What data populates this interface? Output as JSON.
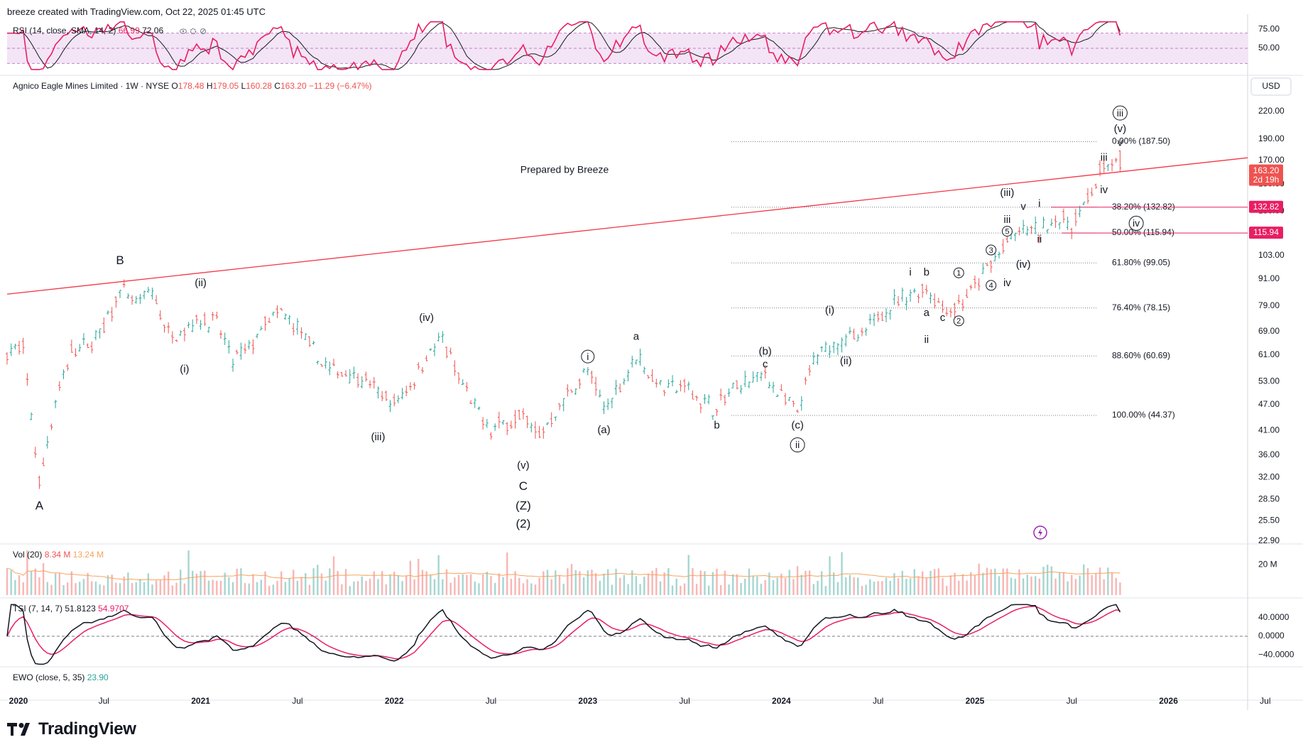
{
  "header": {
    "created": "breeze created with TradingView.com, Oct 22, 2025 01:45 UTC"
  },
  "brand": {
    "logo_text": "TradingView",
    "logo_icon": "tradingview-logo-icon"
  },
  "currency": "USD",
  "main_legend": {
    "symbol": "Agnico Eagle Mines Limited · 1W · NYSE",
    "o_label": "O",
    "o": "178.48",
    "h_label": "H",
    "h": "179.05",
    "l_label": "L",
    "l": "160.28",
    "c_label": "C",
    "c": "163.20",
    "change": "−11.29 (−6.47%)"
  },
  "watermark": "Prepared by Breeze",
  "rsi": {
    "label": "RSI (14, close, SMA, 14, 2)",
    "value": "66.99",
    "sma": "72.06",
    "icons": [
      "eye-icon",
      "settings-icon",
      "delete-icon"
    ]
  },
  "vol": {
    "label": "Vol (20)",
    "value": "8.34 M",
    "ma": "13.24 M"
  },
  "tsi": {
    "label": "TSI (7, 14, 7)",
    "value": "51.8123",
    "signal": "54.9707"
  },
  "ewo": {
    "label": "EWO (close, 5, 35)",
    "value": "23.90"
  },
  "price_badges": {
    "last": "163.20",
    "countdown": "2d 19h",
    "fib382": "132.82",
    "fib50": "115.94"
  },
  "colors": {
    "up": "#26a69a",
    "down": "#ef5350",
    "rsi_line": "#e91e63",
    "rsi_band": "#f3e5f5",
    "trendline": "#f23645",
    "fib_badge": "#e91e63",
    "tsi_main": "#131722",
    "tsi_signal": "#e91e63",
    "ewo_value": "#26a69a",
    "vol_ma": "#f7a35c"
  },
  "chart_data": {
    "type": "candlestick",
    "title": "Agnico Eagle Mines Limited · 1W · NYSE",
    "scale": "log",
    "ylim": [
      22.9,
      260
    ],
    "y_ticks": [
      "220.00",
      "190.00",
      "170.00",
      "150.00",
      "130.00",
      "103.00",
      "91.00",
      "79.00",
      "69.00",
      "61.00",
      "53.00",
      "47.00",
      "41.00",
      "36.00",
      "32.00",
      "28.50",
      "25.50",
      "22.90"
    ],
    "x_ticks": [
      "2020",
      "Jul",
      "2021",
      "Jul",
      "2022",
      "Jul",
      "2023",
      "Jul",
      "2024",
      "Jul",
      "2025",
      "Jul",
      "2026",
      "Jul"
    ],
    "x_range": [
      "2020-01",
      "2026-10"
    ],
    "fib_levels": [
      {
        "label": "0.00% (187.50)",
        "value": 187.5
      },
      {
        "label": "38.20% (132.82)",
        "value": 132.82
      },
      {
        "label": "50.00% (115.94)",
        "value": 115.94
      },
      {
        "label": "61.80% (99.05)",
        "value": 99.05
      },
      {
        "label": "76.40% (78.15)",
        "value": 78.15
      },
      {
        "label": "88.60% (60.69)",
        "value": 60.69
      },
      {
        "label": "100.00% (44.37)",
        "value": 44.37
      }
    ],
    "trendline": [
      {
        "t": "2020-01",
        "v": 84
      },
      {
        "t": "2025-12",
        "v": 163
      }
    ],
    "price_path": [
      [
        "2020-01",
        62
      ],
      [
        "2020-02",
        63
      ],
      [
        "2020-03",
        31
      ],
      [
        "2020-04",
        48
      ],
      [
        "2020-05",
        62
      ],
      [
        "2020-06",
        64
      ],
      [
        "2020-07",
        70
      ],
      [
        "2020-08",
        86
      ],
      [
        "2020-09",
        80
      ],
      [
        "2020-10",
        85
      ],
      [
        "2020-11",
        68
      ],
      [
        "2020-12",
        70
      ],
      [
        "2021-01",
        74
      ],
      [
        "2021-02",
        72
      ],
      [
        "2021-03",
        59
      ],
      [
        "2021-04",
        63
      ],
      [
        "2021-05",
        72
      ],
      [
        "2021-06",
        76
      ],
      [
        "2021-07",
        70
      ],
      [
        "2021-08",
        62
      ],
      [
        "2021-09",
        56
      ],
      [
        "2021-10",
        56
      ],
      [
        "2021-11",
        54
      ],
      [
        "2021-12",
        50
      ],
      [
        "2022-01",
        47
      ],
      [
        "2022-02",
        52
      ],
      [
        "2022-03",
        61
      ],
      [
        "2022-04",
        66
      ],
      [
        "2022-05",
        54
      ],
      [
        "2022-06",
        46
      ],
      [
        "2022-07",
        41
      ],
      [
        "2022-08",
        43
      ],
      [
        "2022-09",
        44
      ],
      [
        "2022-10",
        40
      ],
      [
        "2022-11",
        45
      ],
      [
        "2022-12",
        51
      ],
      [
        "2023-01",
        56
      ],
      [
        "2023-02",
        46
      ],
      [
        "2023-03",
        52
      ],
      [
        "2023-04",
        61
      ],
      [
        "2023-05",
        54
      ],
      [
        "2023-06",
        51
      ],
      [
        "2023-07",
        52
      ],
      [
        "2023-08",
        48
      ],
      [
        "2023-09",
        46
      ],
      [
        "2023-10",
        51
      ],
      [
        "2023-11",
        53
      ],
      [
        "2023-12",
        55
      ],
      [
        "2024-01",
        49
      ],
      [
        "2024-02",
        45
      ],
      [
        "2024-03",
        59
      ],
      [
        "2024-04",
        64
      ],
      [
        "2024-05",
        67
      ],
      [
        "2024-06",
        66
      ],
      [
        "2024-07",
        76
      ],
      [
        "2024-08",
        80
      ],
      [
        "2024-09",
        84
      ],
      [
        "2024-10",
        87
      ],
      [
        "2024-11",
        78
      ],
      [
        "2024-12",
        79
      ],
      [
        "2025-01",
        87
      ],
      [
        "2025-02",
        99
      ],
      [
        "2025-03",
        110
      ],
      [
        "2025-04",
        118
      ],
      [
        "2025-05",
        117
      ],
      [
        "2025-06",
        125
      ],
      [
        "2025-07",
        121
      ],
      [
        "2025-08",
        139
      ],
      [
        "2025-09",
        165
      ],
      [
        "2025-10",
        163.2
      ]
    ],
    "wave_labels": [
      {
        "text": "A",
        "t": "2020-03",
        "v": 27.5
      },
      {
        "text": "B",
        "t": "2020-08",
        "v": 100
      },
      {
        "text": "(i)",
        "t": "2020-12",
        "v": 56.5
      },
      {
        "text": "(ii)",
        "t": "2021-01",
        "v": 89
      },
      {
        "text": "(iii)",
        "t": "2021-12",
        "v": 39.5
      },
      {
        "text": "(iv)",
        "t": "2022-03",
        "v": 74
      },
      {
        "text": "(v)",
        "t": "2022-09",
        "v": 34
      },
      {
        "text": "C",
        "t": "2022-09",
        "v": 30.5
      },
      {
        "text": "(Z)",
        "t": "2022-09",
        "v": 27.5
      },
      {
        "text": "(2)",
        "t": "2022-09",
        "v": 25
      },
      {
        "text": "i",
        "t": "2023-01",
        "v": 60.5,
        "circled": true
      },
      {
        "text": "(a)",
        "t": "2023-02",
        "v": 41
      },
      {
        "text": "a",
        "t": "2023-04",
        "v": 67
      },
      {
        "text": "b",
        "t": "2023-09",
        "v": 42
      },
      {
        "text": "(b)",
        "t": "2023-12",
        "v": 62
      },
      {
        "text": "c",
        "t": "2023-12",
        "v": 58
      },
      {
        "text": "(c)",
        "t": "2024-02",
        "v": 42
      },
      {
        "text": "ii",
        "t": "2024-02",
        "v": 38,
        "circled": true
      },
      {
        "text": "(i)",
        "t": "2024-04",
        "v": 77
      },
      {
        "text": "(ii)",
        "t": "2024-05",
        "v": 59
      },
      {
        "text": "i",
        "t": "2024-09",
        "v": 94
      },
      {
        "text": "a",
        "t": "2024-10",
        "v": 76
      },
      {
        "text": "ii",
        "t": "2024-10",
        "v": 66
      },
      {
        "text": "b",
        "t": "2024-10",
        "v": 94
      },
      {
        "text": "c",
        "t": "2024-11",
        "v": 74
      },
      {
        "text": "1",
        "t": "2024-12",
        "v": 94,
        "circled": true
      },
      {
        "text": "2",
        "t": "2024-12",
        "v": 73,
        "circled": true
      },
      {
        "text": "3",
        "t": "2025-02",
        "v": 106,
        "circled": true
      },
      {
        "text": "4",
        "t": "2025-02",
        "v": 88,
        "circled": true
      },
      {
        "text": "5",
        "t": "2025-03",
        "v": 117,
        "circled": true
      },
      {
        "text": "iii",
        "t": "2025-03",
        "v": 124
      },
      {
        "text": "iv",
        "t": "2025-03",
        "v": 89
      },
      {
        "text": "v",
        "t": "2025-04",
        "v": 133
      },
      {
        "text": "(iii)",
        "t": "2025-03",
        "v": 143
      },
      {
        "text": "(iv)",
        "t": "2025-04",
        "v": 98
      },
      {
        "text": "i",
        "t": "2025-05",
        "v": 135
      },
      {
        "text": "ii",
        "t": "2025-05",
        "v": 112
      },
      {
        "text": "iii",
        "t": "2025-09",
        "v": 172
      },
      {
        "text": "iv",
        "t": "2025-09",
        "v": 145
      },
      {
        "text": "v",
        "t": "2025-10",
        "v": 186
      },
      {
        "text": "(v)",
        "t": "2025-10",
        "v": 200
      },
      {
        "text": "iii",
        "t": "2025-10",
        "v": 218,
        "circled": true
      },
      {
        "text": "iv",
        "t": "2025-11",
        "v": 122,
        "circled": true
      }
    ],
    "rsi": {
      "ticks": [
        "75.00",
        "50.00"
      ],
      "last": 66.99,
      "sma_last": 72.06
    },
    "volume": {
      "tick": "20 M"
    },
    "tsi": {
      "ticks": [
        "40.0000",
        "0.0000",
        "−40.0000"
      ],
      "last": 51.8123,
      "signal_last": 54.9707
    },
    "ewo": {
      "last": 23.9
    }
  }
}
